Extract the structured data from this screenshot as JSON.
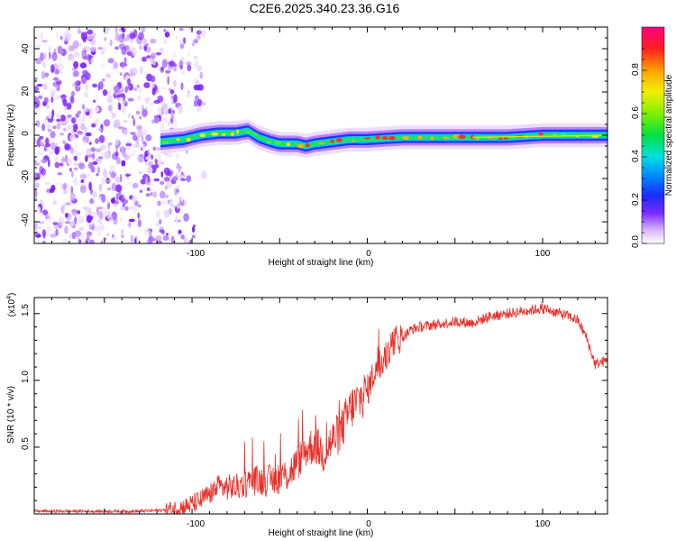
{
  "title": "C2E6.2025.340.23.36.G16",
  "spectrogram": {
    "xlabel": "Height of straight line (km)",
    "ylabel": "Frequency (Hz)",
    "xlim": [
      -190,
      137
    ],
    "ylim": [
      -50,
      50
    ],
    "xticks": [
      "-100",
      "0",
      "100"
    ],
    "xtick_values": [
      -100,
      0,
      100
    ],
    "yticks": [
      "40",
      "20",
      "0",
      "-20",
      "-40"
    ],
    "ytick_values": [
      40,
      20,
      0,
      -20,
      -40
    ],
    "noise_region_end_km": -105,
    "ridge": {
      "x": [
        -118,
        -105,
        -95,
        -85,
        -75,
        -68,
        -62,
        -55,
        -50,
        -45,
        -40,
        -35,
        -30,
        -20,
        -10,
        0,
        20,
        40,
        60,
        80,
        100,
        120,
        137
      ],
      "freq": [
        -3,
        -2,
        0,
        1,
        1,
        2,
        -1,
        -3,
        -4,
        -4,
        -4,
        -5,
        -4,
        -3,
        -2,
        -2,
        -1,
        -1,
        -1,
        -1,
        0,
        0,
        0
      ]
    }
  },
  "colorbar": {
    "label": "Normalized spectral amplitude",
    "range": [
      0.0,
      1.0
    ],
    "ticks": [
      "0.0",
      "0.2",
      "0.4",
      "0.6",
      "0.8"
    ],
    "tick_values": [
      0.0,
      0.2,
      0.4,
      0.6,
      0.8
    ]
  },
  "snr_plot": {
    "xlabel": "Height of straight line (km)",
    "ylabel": "SNR (10 * v/v)",
    "multiplier": "(x10",
    "multiplier_exp": "4",
    "multiplier_close": ")",
    "xlim": [
      -190,
      137
    ],
    "ylim": [
      0.0,
      1.62
    ],
    "yticks": [
      "1.5",
      "1.0",
      "0.5"
    ],
    "ytick_values": [
      1.5,
      1.0,
      0.5
    ],
    "xticks": [
      "-100",
      "0",
      "100"
    ],
    "xtick_values": [
      -100,
      0,
      100
    ],
    "line_color": "#e8302a"
  },
  "chart_data": [
    {
      "type": "heatmap",
      "title": "C2E6.2025.340.23.36.G16",
      "xlabel": "Height of straight line (km)",
      "ylabel": "Frequency (Hz)",
      "xlim": [
        -190,
        137
      ],
      "ylim": [
        -50,
        50
      ],
      "colorbar_label": "Normalized spectral amplitude",
      "colorbar_range": [
        0.0,
        1.0
      ],
      "ridge_x": [
        -118,
        -105,
        -95,
        -85,
        -75,
        -68,
        -62,
        -55,
        -50,
        -45,
        -40,
        -35,
        -30,
        -20,
        -10,
        0,
        20,
        40,
        60,
        80,
        100,
        120,
        137
      ],
      "ridge_freq": [
        -3,
        -2,
        0,
        1,
        1,
        2,
        -1,
        -3,
        -4,
        -4,
        -4,
        -5,
        -4,
        -3,
        -2,
        -2,
        -1,
        -1,
        -1,
        -1,
        0,
        0,
        0
      ]
    },
    {
      "type": "line",
      "title": "",
      "xlabel": "Height of straight line (km)",
      "ylabel": "SNR (10 * v/v) (x10^4)",
      "xlim": [
        -190,
        137
      ],
      "ylim": [
        0.0,
        1.62
      ],
      "series": [
        {
          "name": "SNR",
          "x": [
            -190,
            -170,
            -150,
            -130,
            -115,
            -105,
            -95,
            -85,
            -75,
            -65,
            -55,
            -45,
            -40,
            -35,
            -30,
            -25,
            -20,
            -15,
            -10,
            -5,
            0,
            5,
            10,
            15,
            20,
            25,
            30,
            40,
            50,
            60,
            70,
            80,
            90,
            100,
            110,
            115,
            120,
            125,
            130,
            137
          ],
          "values": [
            0.02,
            0.02,
            0.02,
            0.02,
            0.03,
            0.05,
            0.1,
            0.2,
            0.2,
            0.25,
            0.25,
            0.3,
            0.38,
            0.48,
            0.52,
            0.45,
            0.55,
            0.62,
            0.78,
            0.85,
            0.92,
            1.1,
            1.15,
            1.3,
            1.32,
            1.38,
            1.4,
            1.42,
            1.44,
            1.43,
            1.48,
            1.5,
            1.52,
            1.54,
            1.5,
            1.48,
            1.45,
            1.32,
            1.12,
            1.15
          ]
        }
      ]
    }
  ]
}
